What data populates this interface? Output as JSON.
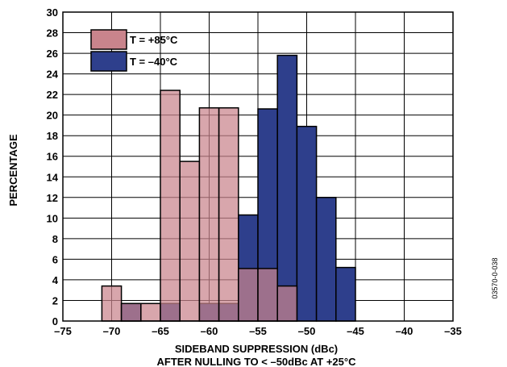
{
  "chart_data": {
    "type": "bar",
    "xlabel": "SIDEBAND SUPPRESSION (dBc)",
    "xlabel_line2": "AFTER NULLING TO < –50dBc AT +25°C",
    "ylabel": "PERCENTAGE",
    "xlim": [
      -75,
      -35
    ],
    "ylim": [
      0,
      30
    ],
    "x_ticks": [
      -75,
      -70,
      -65,
      -60,
      -55,
      -50,
      -45,
      -40,
      -35
    ],
    "x_tick_labels": [
      "–75",
      "–70",
      "–65",
      "–60",
      "–55",
      "–50",
      "–45",
      "–40",
      "–35"
    ],
    "y_ticks": [
      0,
      2,
      4,
      6,
      8,
      10,
      12,
      14,
      16,
      18,
      20,
      22,
      24,
      26,
      28,
      30
    ],
    "grid": true,
    "legend_position": "top-left",
    "bin_width": 2,
    "series": [
      {
        "name": "T = +85°C",
        "color": "#c9848c",
        "bins": [
          {
            "x0": -71,
            "value": 3.4
          },
          {
            "x0": -69,
            "value": 1.7
          },
          {
            "x0": -67,
            "value": 1.7
          },
          {
            "x0": -65,
            "value": 22.4
          },
          {
            "x0": -63,
            "value": 15.5
          },
          {
            "x0": -61,
            "value": 20.7
          },
          {
            "x0": -59,
            "value": 20.7
          },
          {
            "x0": -57,
            "value": 5.1
          },
          {
            "x0": -55,
            "value": 5.1
          },
          {
            "x0": -53,
            "value": 3.4
          }
        ]
      },
      {
        "name": "T = –40°C",
        "color": "#2e3f8c",
        "bins": [
          {
            "x0": -69,
            "value": 1.7
          },
          {
            "x0": -65,
            "value": 1.7
          },
          {
            "x0": -61,
            "value": 1.7
          },
          {
            "x0": -59,
            "value": 1.7
          },
          {
            "x0": -57,
            "value": 10.3
          },
          {
            "x0": -55,
            "value": 20.6
          },
          {
            "x0": -53,
            "value": 25.8
          },
          {
            "x0": -51,
            "value": 18.9
          },
          {
            "x0": -49,
            "value": 12.0
          },
          {
            "x0": -47,
            "value": 5.2
          }
        ]
      }
    ]
  },
  "figure_id": "03570-0-038"
}
